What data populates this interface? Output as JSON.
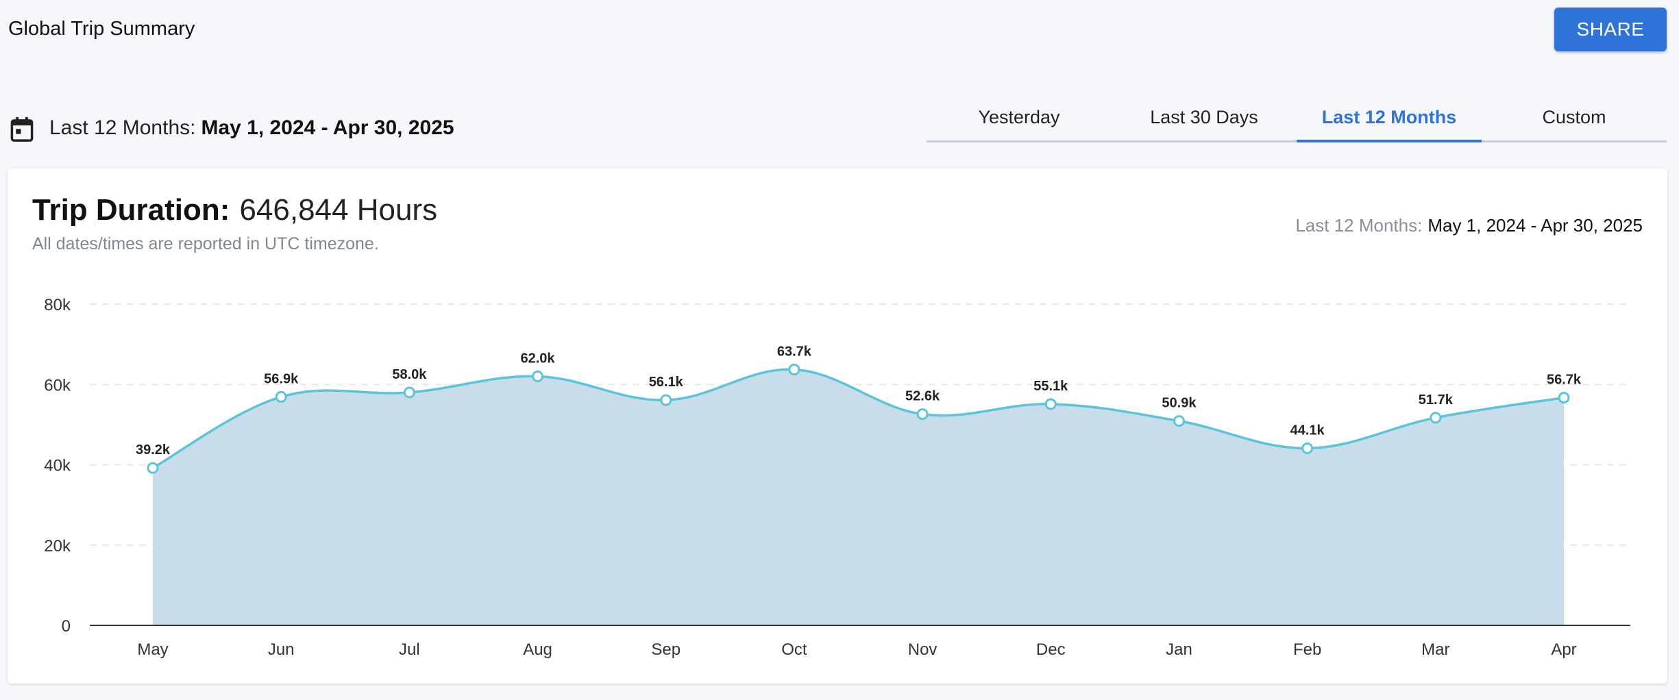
{
  "header": {
    "title": "Global Trip Summary",
    "share_label": "SHARE"
  },
  "range": {
    "icon": "calendar-icon",
    "label": "Last 12 Months:",
    "value": "May 1, 2024 - Apr 30, 2025"
  },
  "tabs": [
    {
      "label": "Yesterday",
      "active": false
    },
    {
      "label": "Last 30 Days",
      "active": false
    },
    {
      "label": "Last 12 Months",
      "active": true
    },
    {
      "label": "Custom",
      "active": false
    }
  ],
  "card": {
    "metric_label": "Trip Duration:",
    "metric_value": "646,844 Hours",
    "note": "All dates/times are reported in UTC timezone.",
    "range_label": "Last 12 Months:",
    "range_value": "May 1, 2024 - Apr 30, 2025"
  },
  "colors": {
    "accent": "#2f73d8",
    "line": "#5bc4d9",
    "area": "#c9dcea"
  },
  "chart_data": {
    "type": "area",
    "categories": [
      "May",
      "Jun",
      "Jul",
      "Aug",
      "Sep",
      "Oct",
      "Nov",
      "Dec",
      "Jan",
      "Feb",
      "Mar",
      "Apr"
    ],
    "values": [
      39200,
      56900,
      58000,
      62000,
      56100,
      63700,
      52600,
      55100,
      50900,
      44100,
      51700,
      56700
    ],
    "data_labels": [
      "39.2k",
      "56.9k",
      "58.0k",
      "62.0k",
      "56.1k",
      "63.7k",
      "52.6k",
      "55.1k",
      "50.9k",
      "44.1k",
      "51.7k",
      "56.7k"
    ],
    "y_ticks": [
      0,
      20000,
      40000,
      60000,
      80000
    ],
    "y_tick_labels": [
      "0",
      "20k",
      "40k",
      "60k",
      "80k"
    ],
    "ylim": [
      0,
      80000
    ],
    "grid": true
  }
}
